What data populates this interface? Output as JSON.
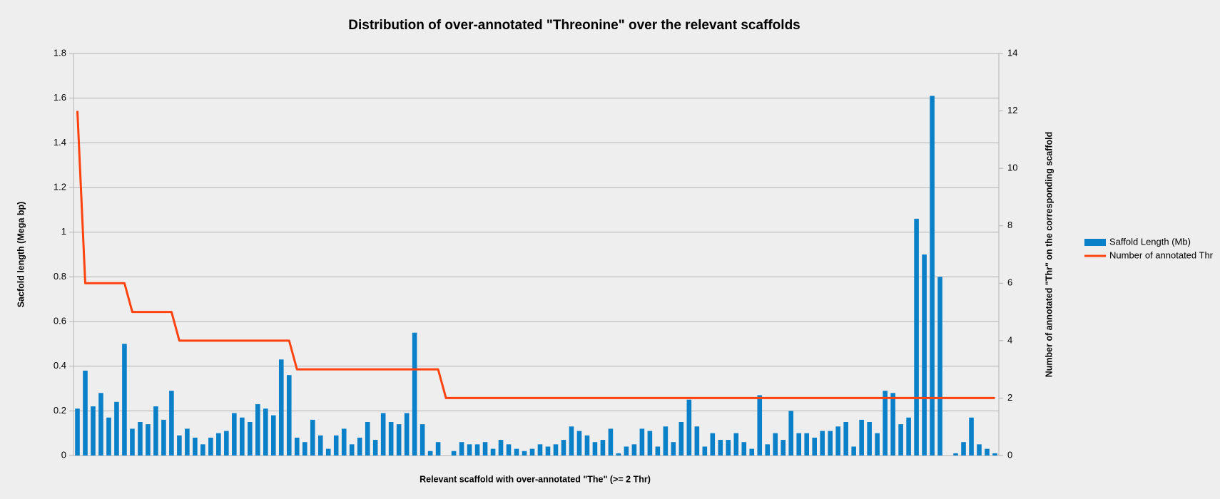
{
  "chart_data": {
    "type": "bar",
    "title": "Distribution of over-annotated \"Threonine\" over the relevant scaffolds",
    "x_label": "Relevant scaffold with over-annotated \"The\" (>= 2 Thr)",
    "y_label": "Sacfold length (Mega bp)",
    "y2_label": "Number of annotated \"Thr\" on the corresponding scaffold",
    "categories": [
      null,
      null,
      null,
      null,
      null,
      null,
      null,
      null,
      null,
      null,
      null,
      null,
      null,
      null,
      null,
      null,
      null,
      null,
      null,
      null,
      null,
      null,
      null,
      null,
      null,
      null,
      null,
      null,
      null,
      null,
      null,
      null,
      null,
      null,
      null,
      null,
      null,
      null,
      null,
      null,
      null,
      null,
      null,
      null,
      null,
      null,
      null,
      null,
      null,
      null,
      null,
      null,
      null,
      null,
      null,
      null,
      null,
      null,
      null,
      null,
      null,
      null,
      null,
      null,
      null,
      null,
      null,
      null,
      null,
      null,
      null,
      null,
      null,
      null,
      null,
      null,
      null,
      null,
      null,
      null,
      null,
      null,
      null,
      null,
      null,
      null,
      null,
      null,
      null,
      null,
      null,
      null,
      null,
      null,
      null,
      null,
      null,
      null,
      null,
      null,
      null,
      null,
      null,
      null,
      null,
      null,
      null,
      null,
      null,
      null,
      null,
      null,
      null,
      null,
      null,
      null,
      null,
      null
    ],
    "series": [
      {
        "name": "Saffold Length (Mb)",
        "type": "bar",
        "color": "#0a80c8",
        "values": [
          0.21,
          0.38,
          0.22,
          0.28,
          0.17,
          0.24,
          0.5,
          0.12,
          0.15,
          0.14,
          0.22,
          0.16,
          0.29,
          0.09,
          0.12,
          0.08,
          0.05,
          0.08,
          0.1,
          0.11,
          0.19,
          0.17,
          0.15,
          0.23,
          0.21,
          0.18,
          0.43,
          0.36,
          0.08,
          0.06,
          0.16,
          0.09,
          0.03,
          0.09,
          0.12,
          0.05,
          0.08,
          0.15,
          0.07,
          0.19,
          0.15,
          0.14,
          0.19,
          0.55,
          0.14,
          0.02,
          0.06,
          0,
          0.02,
          0.06,
          0.05,
          0.05,
          0.06,
          0.03,
          0.07,
          0.05,
          0.03,
          0.02,
          0.03,
          0.05,
          0.04,
          0.05,
          0.07,
          0.13,
          0.11,
          0.09,
          0.06,
          0.07,
          0.12,
          0.01,
          0.04,
          0.05,
          0.12,
          0.11,
          0.04,
          0.13,
          0.06,
          0.15,
          0.25,
          0.13,
          0.04,
          0.1,
          0.07,
          0.07,
          0.1,
          0.06,
          0.03,
          0.27,
          0.05,
          0.1,
          0.07,
          0.2,
          0.1,
          0.1,
          0.08,
          0.11,
          0.11,
          0.13,
          0.15,
          0.04,
          0.16,
          0.15,
          0.1,
          0.29,
          0.28,
          0.14,
          0.17,
          1.06,
          0.9,
          1.61,
          0.8,
          0,
          0.01,
          0.06,
          0.17,
          0.05,
          0.03,
          0.01
        ]
      },
      {
        "name": "Number of annotated Thr",
        "type": "line",
        "axis": "y2",
        "color": "#ff420e",
        "values": [
          12,
          6,
          6,
          6,
          6,
          6,
          6,
          5,
          5,
          5,
          5,
          5,
          5,
          4,
          4,
          4,
          4,
          4,
          4,
          4,
          4,
          4,
          4,
          4,
          4,
          4,
          4,
          4,
          3,
          3,
          3,
          3,
          3,
          3,
          3,
          3,
          3,
          3,
          3,
          3,
          3,
          3,
          3,
          3,
          3,
          3,
          3,
          2,
          2,
          2,
          2,
          2,
          2,
          2,
          2,
          2,
          2,
          2,
          2,
          2,
          2,
          2,
          2,
          2,
          2,
          2,
          2,
          2,
          2,
          2,
          2,
          2,
          2,
          2,
          2,
          2,
          2,
          2,
          2,
          2,
          2,
          2,
          2,
          2,
          2,
          2,
          2,
          2,
          2,
          2,
          2,
          2,
          2,
          2,
          2,
          2,
          2,
          2,
          2,
          2,
          2,
          2,
          2,
          2,
          2,
          2,
          2,
          2,
          2,
          2,
          2,
          2,
          2,
          2,
          2,
          2,
          2,
          2
        ]
      }
    ],
    "ylim": [
      0,
      1.8
    ],
    "yticks": [
      0,
      0.2,
      0.4,
      0.6,
      0.8,
      1,
      1.2,
      1.4,
      1.6,
      1.8
    ],
    "y2lim": [
      0,
      14
    ],
    "y2ticks": [
      0,
      2,
      4,
      6,
      8,
      10,
      12,
      14
    ],
    "grid": true,
    "legend": "right"
  }
}
